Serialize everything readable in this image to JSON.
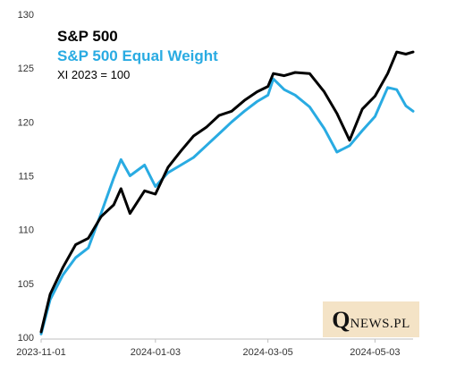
{
  "legend": {
    "series1": "S&P 500",
    "series2": "S&P 500 Equal Weight",
    "note": "XI 2023 = 100"
  },
  "logo": {
    "q": "Q",
    "rest": "NEWS.PL"
  },
  "colors": {
    "series1": "#000000",
    "series2": "#29abe2",
    "logo_bg": "#f4e3c6"
  },
  "chart_data": {
    "type": "line",
    "title": "",
    "xlabel": "",
    "ylabel": "",
    "ylim": [
      100,
      130
    ],
    "y_ticks": [
      100,
      105,
      110,
      115,
      120,
      125,
      130
    ],
    "x_ticks": [
      "2023-11-01",
      "2024-01-03",
      "2024-03-05",
      "2024-05-03"
    ],
    "grid": false,
    "legend_position": "top-left",
    "x": [
      "2023-11-01",
      "2023-11-06",
      "2023-11-13",
      "2023-11-20",
      "2023-11-27",
      "2023-12-04",
      "2023-12-11",
      "2023-12-15",
      "2023-12-20",
      "2023-12-28",
      "2024-01-03",
      "2024-01-10",
      "2024-01-17",
      "2024-01-24",
      "2024-01-31",
      "2024-02-07",
      "2024-02-14",
      "2024-02-21",
      "2024-02-28",
      "2024-03-05",
      "2024-03-08",
      "2024-03-14",
      "2024-03-20",
      "2024-03-28",
      "2024-04-05",
      "2024-04-12",
      "2024-04-19",
      "2024-04-26",
      "2024-05-03",
      "2024-05-10",
      "2024-05-15",
      "2024-05-20",
      "2024-05-24"
    ],
    "series": [
      {
        "name": "S&P 500",
        "values": [
          100.5,
          104.0,
          106.5,
          108.6,
          109.2,
          111.2,
          112.3,
          113.8,
          111.5,
          113.6,
          113.3,
          115.8,
          117.3,
          118.7,
          119.5,
          120.6,
          121.0,
          122.0,
          122.8,
          123.3,
          124.5,
          124.3,
          124.6,
          124.5,
          122.8,
          120.8,
          118.3,
          121.2,
          122.4,
          124.5,
          126.5,
          126.3,
          126.5
        ]
      },
      {
        "name": "S&P 500 Equal Weight",
        "values": [
          100.3,
          103.5,
          105.8,
          107.4,
          108.3,
          111.5,
          114.8,
          116.5,
          115.0,
          116.0,
          114.0,
          115.3,
          116.0,
          116.7,
          117.8,
          118.9,
          120.0,
          121.0,
          121.9,
          122.5,
          124.0,
          123.0,
          122.5,
          121.4,
          119.4,
          117.2,
          117.8,
          119.2,
          120.5,
          123.2,
          123.0,
          121.5,
          121.0
        ]
      }
    ]
  }
}
